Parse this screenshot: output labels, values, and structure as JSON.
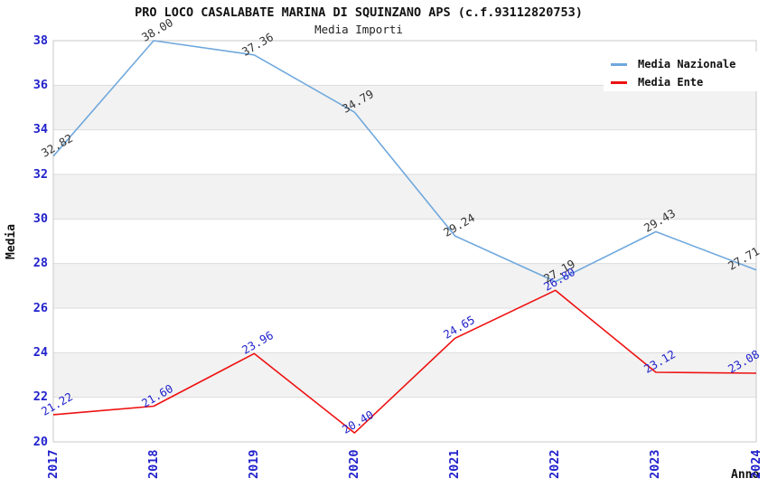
{
  "header": {
    "title": "PRO LOCO CASALABATE MARINA DI SQUINZANO APS (c.f.93112820753)",
    "subtitle": "Media Importi"
  },
  "colors": {
    "axis_tick_label": "#2222CC",
    "nazionale_line": "#6FA8DC",
    "ente_line": "#EE1111",
    "nazionale_value_label": "#333333",
    "ente_value_label": "#2222CC",
    "band_gray": "#F2F2F2",
    "gridline": "#DCDCDC",
    "plot_border": "#C9C9C9"
  },
  "legend": {
    "items": [
      {
        "label": "Media Nazionale",
        "color": "#6FA8DC"
      },
      {
        "label": "Media Ente",
        "color": "#EE1111"
      }
    ]
  },
  "chart_data": {
    "type": "line",
    "title": "PRO LOCO CASALABATE MARINA DI SQUINZANO APS (c.f.93112820753)",
    "subtitle": "Media Importi",
    "xlabel": "Anno",
    "ylabel": "Media",
    "xticks": [
      "2017",
      "2018",
      "2019",
      "2020",
      "2021",
      "2022",
      "2023",
      "2024"
    ],
    "yticks": [
      38,
      36,
      34,
      32,
      30,
      28,
      26,
      24,
      22,
      20
    ],
    "ylim": [
      20,
      38
    ],
    "grid": "horizontal-bands-alternating",
    "legend_position": "top-right-inside",
    "series": [
      {
        "name": "Media Nazionale",
        "color": "#6FA8DC",
        "label_color": "#333333",
        "values": [
          32.82,
          38.0,
          37.36,
          34.79,
          29.24,
          27.19,
          29.43,
          27.71
        ],
        "value_labels": [
          "32.82",
          "38.00",
          "37.36",
          "34.79",
          "29.24",
          "27.19",
          "29.43",
          "27.71"
        ]
      },
      {
        "name": "Media Ente",
        "color": "#EE1111",
        "label_color": "#2222CC",
        "values": [
          21.22,
          21.6,
          23.96,
          20.4,
          24.65,
          26.8,
          23.12,
          23.08
        ],
        "value_labels": [
          "21.22",
          "21.60",
          "23.96",
          "20.40",
          "24.65",
          "26.80",
          "23.12",
          "23.08"
        ]
      }
    ]
  }
}
